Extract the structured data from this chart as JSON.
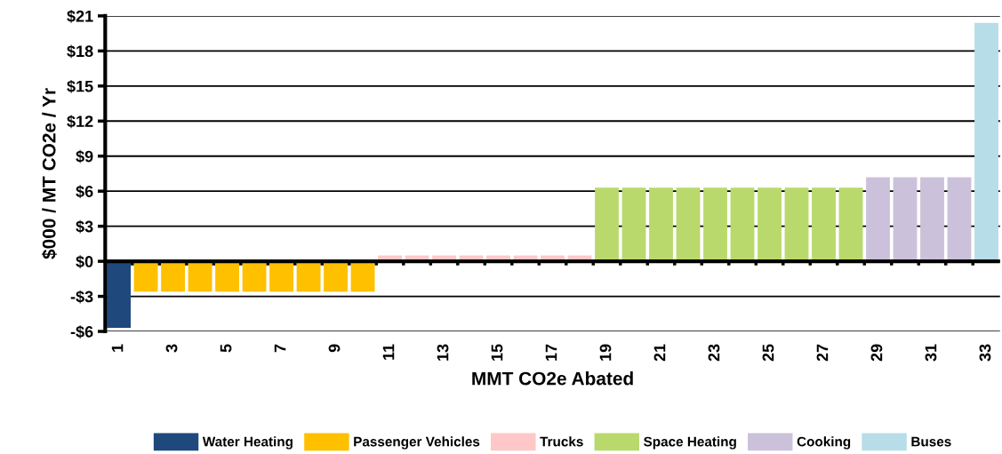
{
  "chart_data": {
    "type": "bar",
    "xlabel": "MMT CO2e Abated",
    "ylabel": "$000 / MT CO2e / Yr",
    "categories": [
      "1",
      null,
      "3",
      null,
      "5",
      null,
      "7",
      null,
      "9",
      null,
      "11",
      null,
      "13",
      null,
      "15",
      null,
      "17",
      null,
      "19",
      null,
      "21",
      null,
      "23",
      null,
      "25",
      null,
      "27",
      null,
      "29",
      null,
      "31",
      null,
      "33"
    ],
    "series": [
      {
        "name": "Water Heating",
        "color": "#1f497d",
        "values": [
          -5.7,
          null,
          null,
          null,
          null,
          null,
          null,
          null,
          null,
          null,
          null,
          null,
          null,
          null,
          null,
          null,
          null,
          null,
          null,
          null,
          null,
          null,
          null,
          null,
          null,
          null,
          null,
          null,
          null,
          null,
          null,
          null,
          null
        ]
      },
      {
        "name": "Passenger Vehicles",
        "color": "#ffc000",
        "values": [
          null,
          -2.6,
          -2.6,
          -2.6,
          -2.6,
          -2.6,
          -2.6,
          -2.6,
          -2.6,
          -2.6,
          null,
          null,
          null,
          null,
          null,
          null,
          null,
          null,
          null,
          null,
          null,
          null,
          null,
          null,
          null,
          null,
          null,
          null,
          null,
          null,
          null,
          null,
          null
        ]
      },
      {
        "name": "Trucks",
        "color": "#ffc7c7",
        "values": [
          null,
          null,
          null,
          null,
          null,
          null,
          null,
          null,
          null,
          null,
          0.5,
          0.5,
          0.5,
          0.5,
          0.5,
          0.5,
          0.5,
          0.5,
          null,
          null,
          null,
          null,
          null,
          null,
          null,
          null,
          null,
          null,
          null,
          null,
          null,
          null,
          null
        ]
      },
      {
        "name": "Space Heating",
        "color": "#b9d96d",
        "values": [
          null,
          null,
          null,
          null,
          null,
          null,
          null,
          null,
          null,
          null,
          null,
          null,
          null,
          null,
          null,
          null,
          null,
          null,
          6.3,
          6.3,
          6.3,
          6.3,
          6.3,
          6.3,
          6.3,
          6.3,
          6.3,
          6.3,
          null,
          null,
          null,
          null,
          null
        ]
      },
      {
        "name": "Cooking",
        "color": "#ccc1da",
        "values": [
          null,
          null,
          null,
          null,
          null,
          null,
          null,
          null,
          null,
          null,
          null,
          null,
          null,
          null,
          null,
          null,
          null,
          null,
          null,
          null,
          null,
          null,
          null,
          null,
          null,
          null,
          null,
          null,
          7.2,
          7.2,
          7.2,
          7.2,
          null
        ]
      },
      {
        "name": "Buses",
        "color": "#b7dde8",
        "values": [
          null,
          null,
          null,
          null,
          null,
          null,
          null,
          null,
          null,
          null,
          null,
          null,
          null,
          null,
          null,
          null,
          null,
          null,
          null,
          null,
          null,
          null,
          null,
          null,
          null,
          null,
          null,
          null,
          null,
          null,
          null,
          null,
          20.4
        ]
      }
    ],
    "ylim": [
      -6,
      21
    ],
    "yticks": [
      {
        "value": -6,
        "label": "-$6"
      },
      {
        "value": -3,
        "label": "-$3"
      },
      {
        "value": 0,
        "label": "$0"
      },
      {
        "value": 3,
        "label": "$3"
      },
      {
        "value": 6,
        "label": "$6"
      },
      {
        "value": 9,
        "label": "$9"
      },
      {
        "value": 12,
        "label": "$12"
      },
      {
        "value": 15,
        "label": "$15"
      },
      {
        "value": 18,
        "label": "$18"
      },
      {
        "value": 21,
        "label": "$21"
      }
    ],
    "grid": "y",
    "legend": "bottom"
  }
}
